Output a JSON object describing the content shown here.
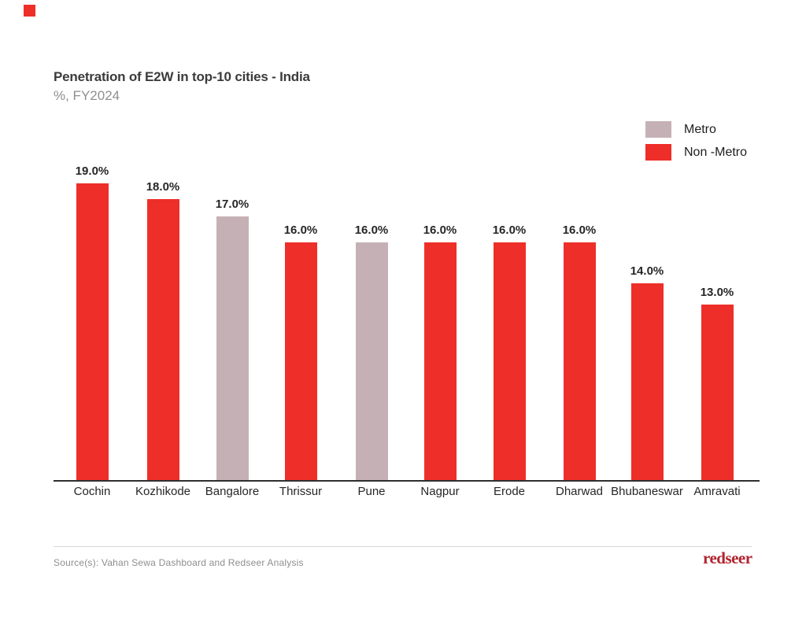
{
  "page": {
    "background": "#ffffff",
    "accent_square_color": "#ee2e29"
  },
  "header": {
    "title": "Penetration of E2W in top-10 cities - India",
    "subtitle": "%, FY2024"
  },
  "legend": {
    "items": [
      {
        "label": "Metro",
        "color": "#c5b1b5"
      },
      {
        "label": "Non -Metro",
        "color": "#ee2e29"
      }
    ]
  },
  "chart_data": {
    "type": "bar",
    "title": "Penetration of E2W in top-10 cities - India",
    "subtitle": "%, FY2024",
    "unit": "%",
    "categories": [
      "Cochin",
      "Kozhikode",
      "Bangalore",
      "Thrissur",
      "Pune",
      "Nagpur",
      "Erode",
      "Dharwad",
      "Bhubaneswar",
      "Amravati"
    ],
    "values": [
      19.0,
      18.0,
      17.0,
      16.0,
      16.0,
      16.0,
      16.0,
      16.0,
      14.0,
      13.0
    ],
    "value_labels": [
      "19.0%",
      "18.0%",
      "17.0%",
      "16.0%",
      "16.0%",
      "16.0%",
      "16.0%",
      "16.0%",
      "14.0%",
      "13.0%"
    ],
    "groups": [
      "Non -Metro",
      "Non -Metro",
      "Metro",
      "Non -Metro",
      "Metro",
      "Non -Metro",
      "Non -Metro",
      "Non -Metro",
      "Non -Metro",
      "Non -Metro"
    ],
    "group_colors": {
      "Metro": "#c5b1b5",
      "Non -Metro": "#ee2e29"
    },
    "xlabel": "",
    "ylabel": "",
    "grid": false,
    "axis_style": "baseline-only",
    "legend_position": "top-right",
    "data_labels": "above-bars"
  },
  "footer": {
    "source": "Source(s): Vahan Sewa Dashboard and Redseer Analysis",
    "logo_text": "redseer",
    "logo_color": "#b1232f"
  }
}
